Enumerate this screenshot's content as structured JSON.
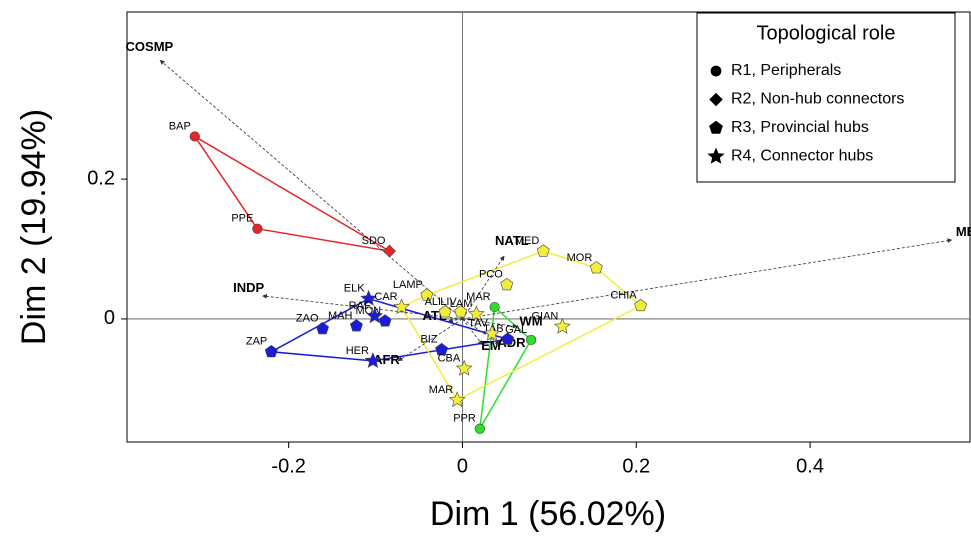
{
  "chart_data": {
    "type": "biplot",
    "x_label": "Dim 1 (56.02%)",
    "y_label": "Dim 2 (19.94%)",
    "xlim": [
      -0.386,
      0.584
    ],
    "ylim": [
      -0.176,
      0.439
    ],
    "xticks": [
      -0.2,
      0,
      0.2,
      0.4
    ],
    "yticks": [
      0,
      0.2
    ],
    "legend_title": "Topological role",
    "legend_position": "upper right",
    "series": [
      {
        "name": "R1, Peripherals",
        "marker": "circle",
        "labels": [
          "BAP",
          "PPE",
          "MAR",
          "GAL",
          "PPR"
        ],
        "x": [
          -0.308,
          -0.236,
          0.037,
          0.079,
          0.02
        ],
        "values": [
          0.261,
          0.129,
          0.017,
          -0.03,
          -0.157
        ],
        "colors": [
          "#e8262a",
          "#e8262a",
          "#2ede2e",
          "#2ede2e",
          "#2ede2e"
        ]
      },
      {
        "name": "R2, Non-hub connectors",
        "marker": "diamond",
        "labels": [
          "SDO"
        ],
        "x": [
          -0.084
        ],
        "values": [
          0.097
        ],
        "colors": [
          "#e8262a"
        ]
      },
      {
        "name": "R3, Provincial hubs",
        "marker": "pentagon",
        "labels": [
          "ZAO",
          "MAH",
          "MON",
          "ZAP",
          "BIZ",
          "TAB",
          "LAMP",
          "ALI",
          "LIV",
          "MED",
          "PCO",
          "MOR",
          "CHIA"
        ],
        "x": [
          -0.161,
          -0.122,
          -0.089,
          -0.22,
          -0.024,
          0.052,
          -0.041,
          -0.02,
          -0.002,
          0.093,
          0.051,
          0.154,
          0.205
        ],
        "values": [
          -0.014,
          -0.01,
          -0.003,
          -0.047,
          -0.044,
          -0.029,
          0.034,
          0.01,
          0.01,
          0.097,
          0.049,
          0.073,
          0.019
        ],
        "colors": [
          "#1c1cd6",
          "#1c1cd6",
          "#1c1cd6",
          "#1c1cd6",
          "#1c1cd6",
          "#1c1cd6",
          "#f2ec3a",
          "#f2ec3a",
          "#f2ec3a",
          "#f2ec3a",
          "#f2ec3a",
          "#f2ec3a",
          "#f2ec3a"
        ]
      },
      {
        "name": "R4, Connector hubs",
        "marker": "star",
        "labels": [
          "ELK",
          "RAF",
          "HER",
          "CAR",
          "LAM",
          "GIAN",
          "TAV",
          "CBA",
          "MAR"
        ],
        "x": [
          -0.108,
          -0.101,
          -0.103,
          -0.07,
          0.016,
          0.115,
          0.034,
          0.002,
          -0.006
        ],
        "values": [
          0.029,
          0.004,
          -0.06,
          0.017,
          0.007,
          -0.011,
          -0.021,
          -0.071,
          -0.116
        ],
        "colors": [
          "#1c1cd6",
          "#1c1cd6",
          "#1c1cd6",
          "#f2ec3a",
          "#f2ec3a",
          "#f2ec3a",
          "#f2ec3a",
          "#f2ec3a",
          "#f2ec3a"
        ]
      }
    ],
    "vectors": {
      "labels": [
        "COSMP",
        "ME",
        "INDP",
        "NATL",
        "ATL",
        "WM",
        "EM",
        "ADR",
        "AFR"
      ],
      "x": [
        -0.348,
        0.563,
        -0.23,
        0.048,
        -0.016,
        0.063,
        0.023,
        0.043,
        -0.074
      ],
      "y": [
        0.37,
        0.113,
        0.033,
        0.09,
        -0.003,
        -0.011,
        -0.037,
        -0.036,
        -0.06
      ]
    }
  }
}
